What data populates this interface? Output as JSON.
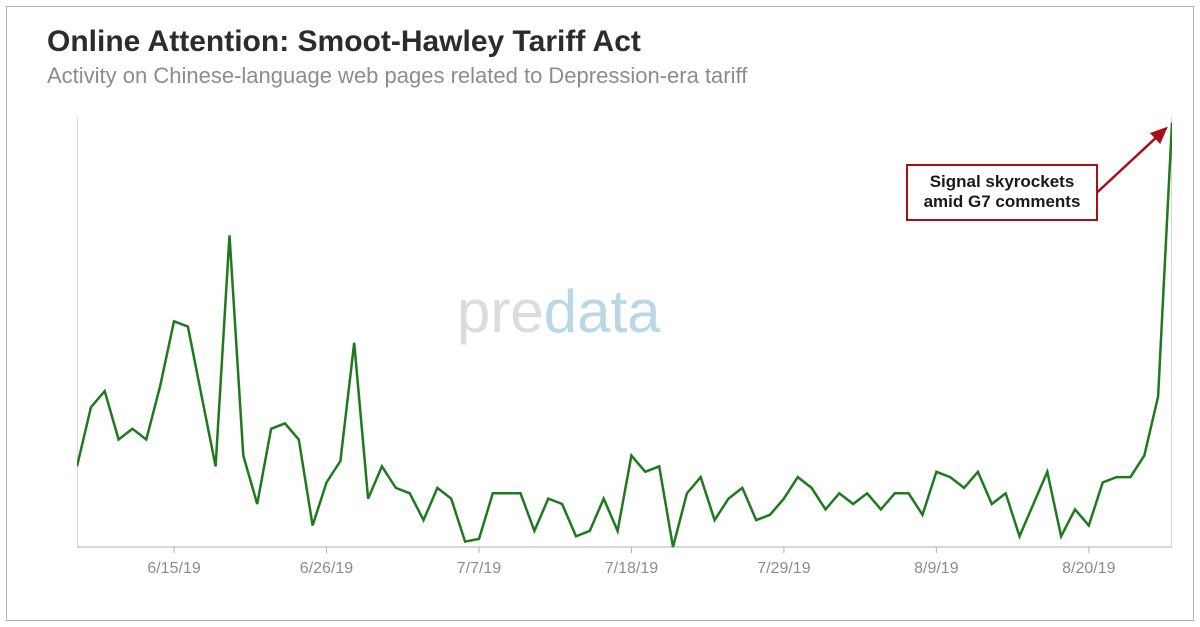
{
  "title": "Online Attention: Smoot-Hawley Tariff Act",
  "subtitle": "Activity on Chinese-language web pages related to Depression-era tariff",
  "watermark_pre": "pre",
  "watermark_data": "data",
  "chart": {
    "type": "line",
    "line_color": "#1f7a1f",
    "line_width": 2.5,
    "background_color": "#ffffff",
    "axis_color": "#b0b0b0",
    "tick_label_color": "#8c8c8c",
    "tick_fontsize": 16,
    "ylim": [
      0,
      80
    ],
    "yticks": [
      0,
      80
    ],
    "x_labels": [
      "6/15/19",
      "6/26/19",
      "7/7/19",
      "7/18/19",
      "7/29/19",
      "8/9/19",
      "8/20/19"
    ],
    "x_label_indices": [
      7,
      18,
      29,
      40,
      51,
      62,
      73
    ],
    "n_points": 80,
    "values": [
      15,
      26,
      29,
      20,
      22,
      20,
      30,
      42,
      41,
      28,
      15,
      58,
      17,
      8,
      22,
      23,
      20,
      4,
      12,
      16,
      38,
      9,
      15,
      11,
      10,
      5,
      11,
      9,
      1,
      1.5,
      10,
      10,
      10,
      3,
      9,
      8,
      2,
      3,
      9,
      3,
      17,
      14,
      15,
      0,
      10,
      13,
      5,
      9,
      11,
      5,
      6,
      9,
      13,
      11,
      7,
      10,
      8,
      10,
      7,
      10,
      10,
      6,
      14,
      13,
      11,
      14,
      8,
      10,
      2,
      8,
      14,
      2,
      7,
      4,
      12,
      13,
      13,
      17,
      28,
      79
    ]
  },
  "annotation": {
    "line1": "Signal skyrockets",
    "line2": "amid G7 comments",
    "box_color": "#a50f15",
    "arrow_color": "#a50f15",
    "text_color": "#1a1a1a"
  }
}
